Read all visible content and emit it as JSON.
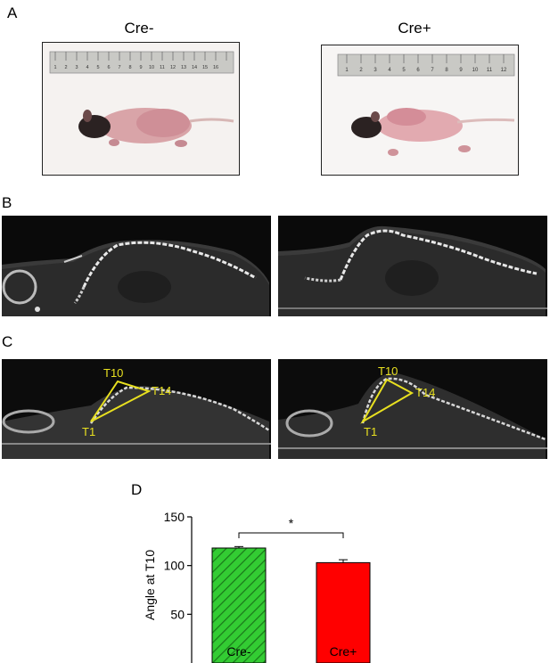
{
  "panels": {
    "a": "A",
    "b": "B",
    "c": "C",
    "d": "D"
  },
  "panel_a": {
    "left_title": "Cre-",
    "right_title": "Cre+",
    "left_ruler_numbers": [
      "1",
      "2",
      "3",
      "4",
      "5",
      "6",
      "7",
      "8",
      "9",
      "10",
      "11",
      "12",
      "13",
      "14",
      "15",
      "16"
    ],
    "right_ruler_numbers": [
      "1",
      "2",
      "3",
      "4",
      "5",
      "6",
      "7",
      "8",
      "9",
      "10",
      "11",
      "12"
    ]
  },
  "panel_c": {
    "left_labels": {
      "t10": "T10",
      "t14": "T14",
      "t1": "T1"
    },
    "right_labels": {
      "t10": "T10",
      "t14": "T14",
      "t1": "T1"
    },
    "triangle_color": "#e8e020"
  },
  "chart_data": {
    "type": "bar",
    "categories": [
      "Cre-",
      "Cre+"
    ],
    "values": [
      118,
      103
    ],
    "errors": [
      1.5,
      3
    ],
    "ylabel": "Angle at T10",
    "xlabel": "",
    "ylim": [
      0,
      150
    ],
    "yticks": [
      50,
      100,
      150
    ],
    "significance": "*",
    "colors": {
      "cre_minus": "#33cc33",
      "cre_plus": "#ff0000"
    },
    "bar_labels": [
      "Cre-",
      "Cre+"
    ]
  }
}
